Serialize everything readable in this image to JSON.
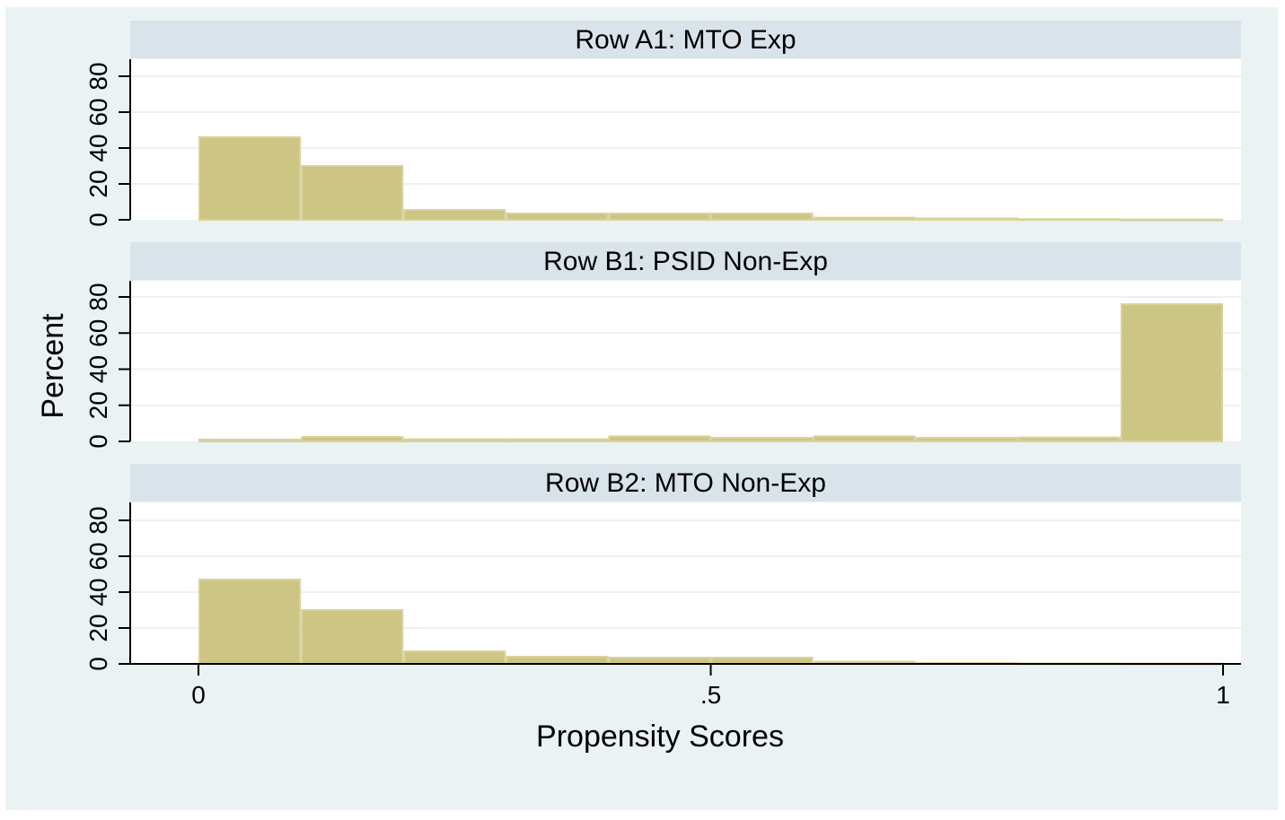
{
  "chart_data": {
    "type": "bar",
    "subtype": "histogram",
    "xlabel": "Propensity Scores",
    "ylabel": "Percent",
    "xlim": [
      0,
      1
    ],
    "ylim": [
      0,
      80
    ],
    "x_ticks": [
      {
        "value": 0,
        "label": "0"
      },
      {
        "value": 0.5,
        "label": ".5"
      },
      {
        "value": 1,
        "label": "1"
      }
    ],
    "y_ticks": [
      {
        "value": 0,
        "label": "0"
      },
      {
        "value": 20,
        "label": "20"
      },
      {
        "value": 40,
        "label": "40"
      },
      {
        "value": 60,
        "label": "60"
      },
      {
        "value": 80,
        "label": "80"
      }
    ],
    "bin_edges": [
      0,
      0.1,
      0.2,
      0.3,
      0.4,
      0.5,
      0.6,
      0.7,
      0.8,
      0.9,
      1.0
    ],
    "grid": true,
    "panels": [
      {
        "title": "Row A1: MTO Exp",
        "values": [
          46,
          30,
          5.5,
          3.5,
          3.5,
          3.5,
          1.2,
          0.8,
          0.4,
          0.2
        ]
      },
      {
        "title": "Row B1: PSID Non-Exp",
        "values": [
          1,
          2.5,
          1.2,
          1.2,
          2.8,
          2,
          2.8,
          2,
          2.2,
          76
        ]
      },
      {
        "title": "Row B2: MTO Non-Exp",
        "values": [
          47,
          30,
          7,
          4,
          3.5,
          3.5,
          1.2,
          0.5,
          0.3,
          0.2
        ]
      }
    ],
    "colors": {
      "bar_fill": "#cdc584",
      "bar_edge": "#d9d29c",
      "panel_header": "#d9e3ea",
      "background": "#eaf2f3",
      "plot_area": "#ffffff",
      "gridline": "#eaf2f3"
    }
  }
}
